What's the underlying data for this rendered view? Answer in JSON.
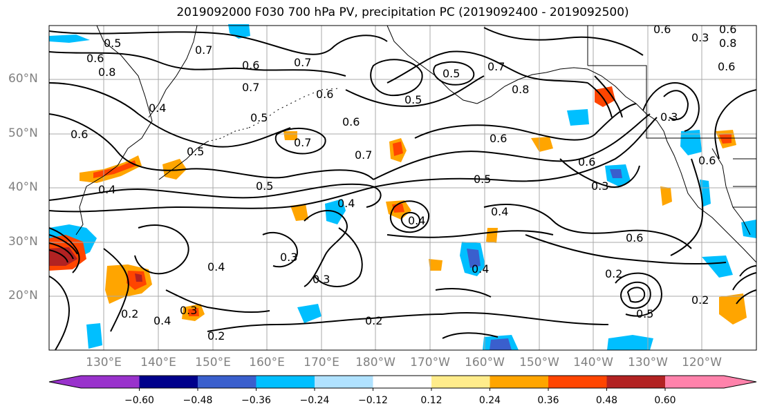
{
  "title": "2019092000 F030 700 hPa PV, precipitation PC (2019092400 - 2019092500)",
  "map": {
    "lat_labels": [
      "60°N",
      "50°N",
      "40°N",
      "30°N",
      "20°N"
    ],
    "lon_labels": [
      "130°E",
      "140°E",
      "150°E",
      "160°E",
      "170°E",
      "180°W",
      "170°W",
      "160°W",
      "150°W",
      "140°W",
      "130°W",
      "120°W"
    ],
    "contour_labels": [
      "0.5",
      "0.6",
      "0.8",
      "0.7",
      "0.6",
      "0.7",
      "0.7",
      "0.5",
      "0.4",
      "0.7",
      "0.6",
      "0.6",
      "0.3",
      "0.5",
      "0.6",
      "0.6",
      "0.7",
      "0.6",
      "0.5",
      "0.4",
      "0.5",
      "0.7",
      "0.6",
      "0.5",
      "0.3",
      "0.4",
      "0.6",
      "0.4",
      "0.3",
      "0.4",
      "0.4",
      "0.2",
      "0.4",
      "0.2",
      "0.2",
      "0.2",
      "0.3",
      "0.2",
      "0.5",
      "0.3",
      "0.6",
      "0.5",
      "0.8",
      "0.3",
      "0.4",
      "0.6",
      "0.8",
      "0.6"
    ]
  },
  "colorbar": {
    "tick_labels": [
      "−0.60",
      "−0.48",
      "−0.36",
      "−0.24",
      "−0.12",
      "0.12",
      "0.24",
      "0.36",
      "0.48",
      "0.60"
    ],
    "colors": [
      "#9932cc",
      "#00008b",
      "#3a5fcd",
      "#00bfff",
      "#b0e2ff",
      "#ffffff",
      "#ffec8b",
      "#ffa500",
      "#ff4500",
      "#b22222",
      "#ff82ab"
    ]
  },
  "colors": {
    "frame": "#000000",
    "grid": "#a9a9a9",
    "coast": "#000000",
    "axis_text": "#808080"
  }
}
